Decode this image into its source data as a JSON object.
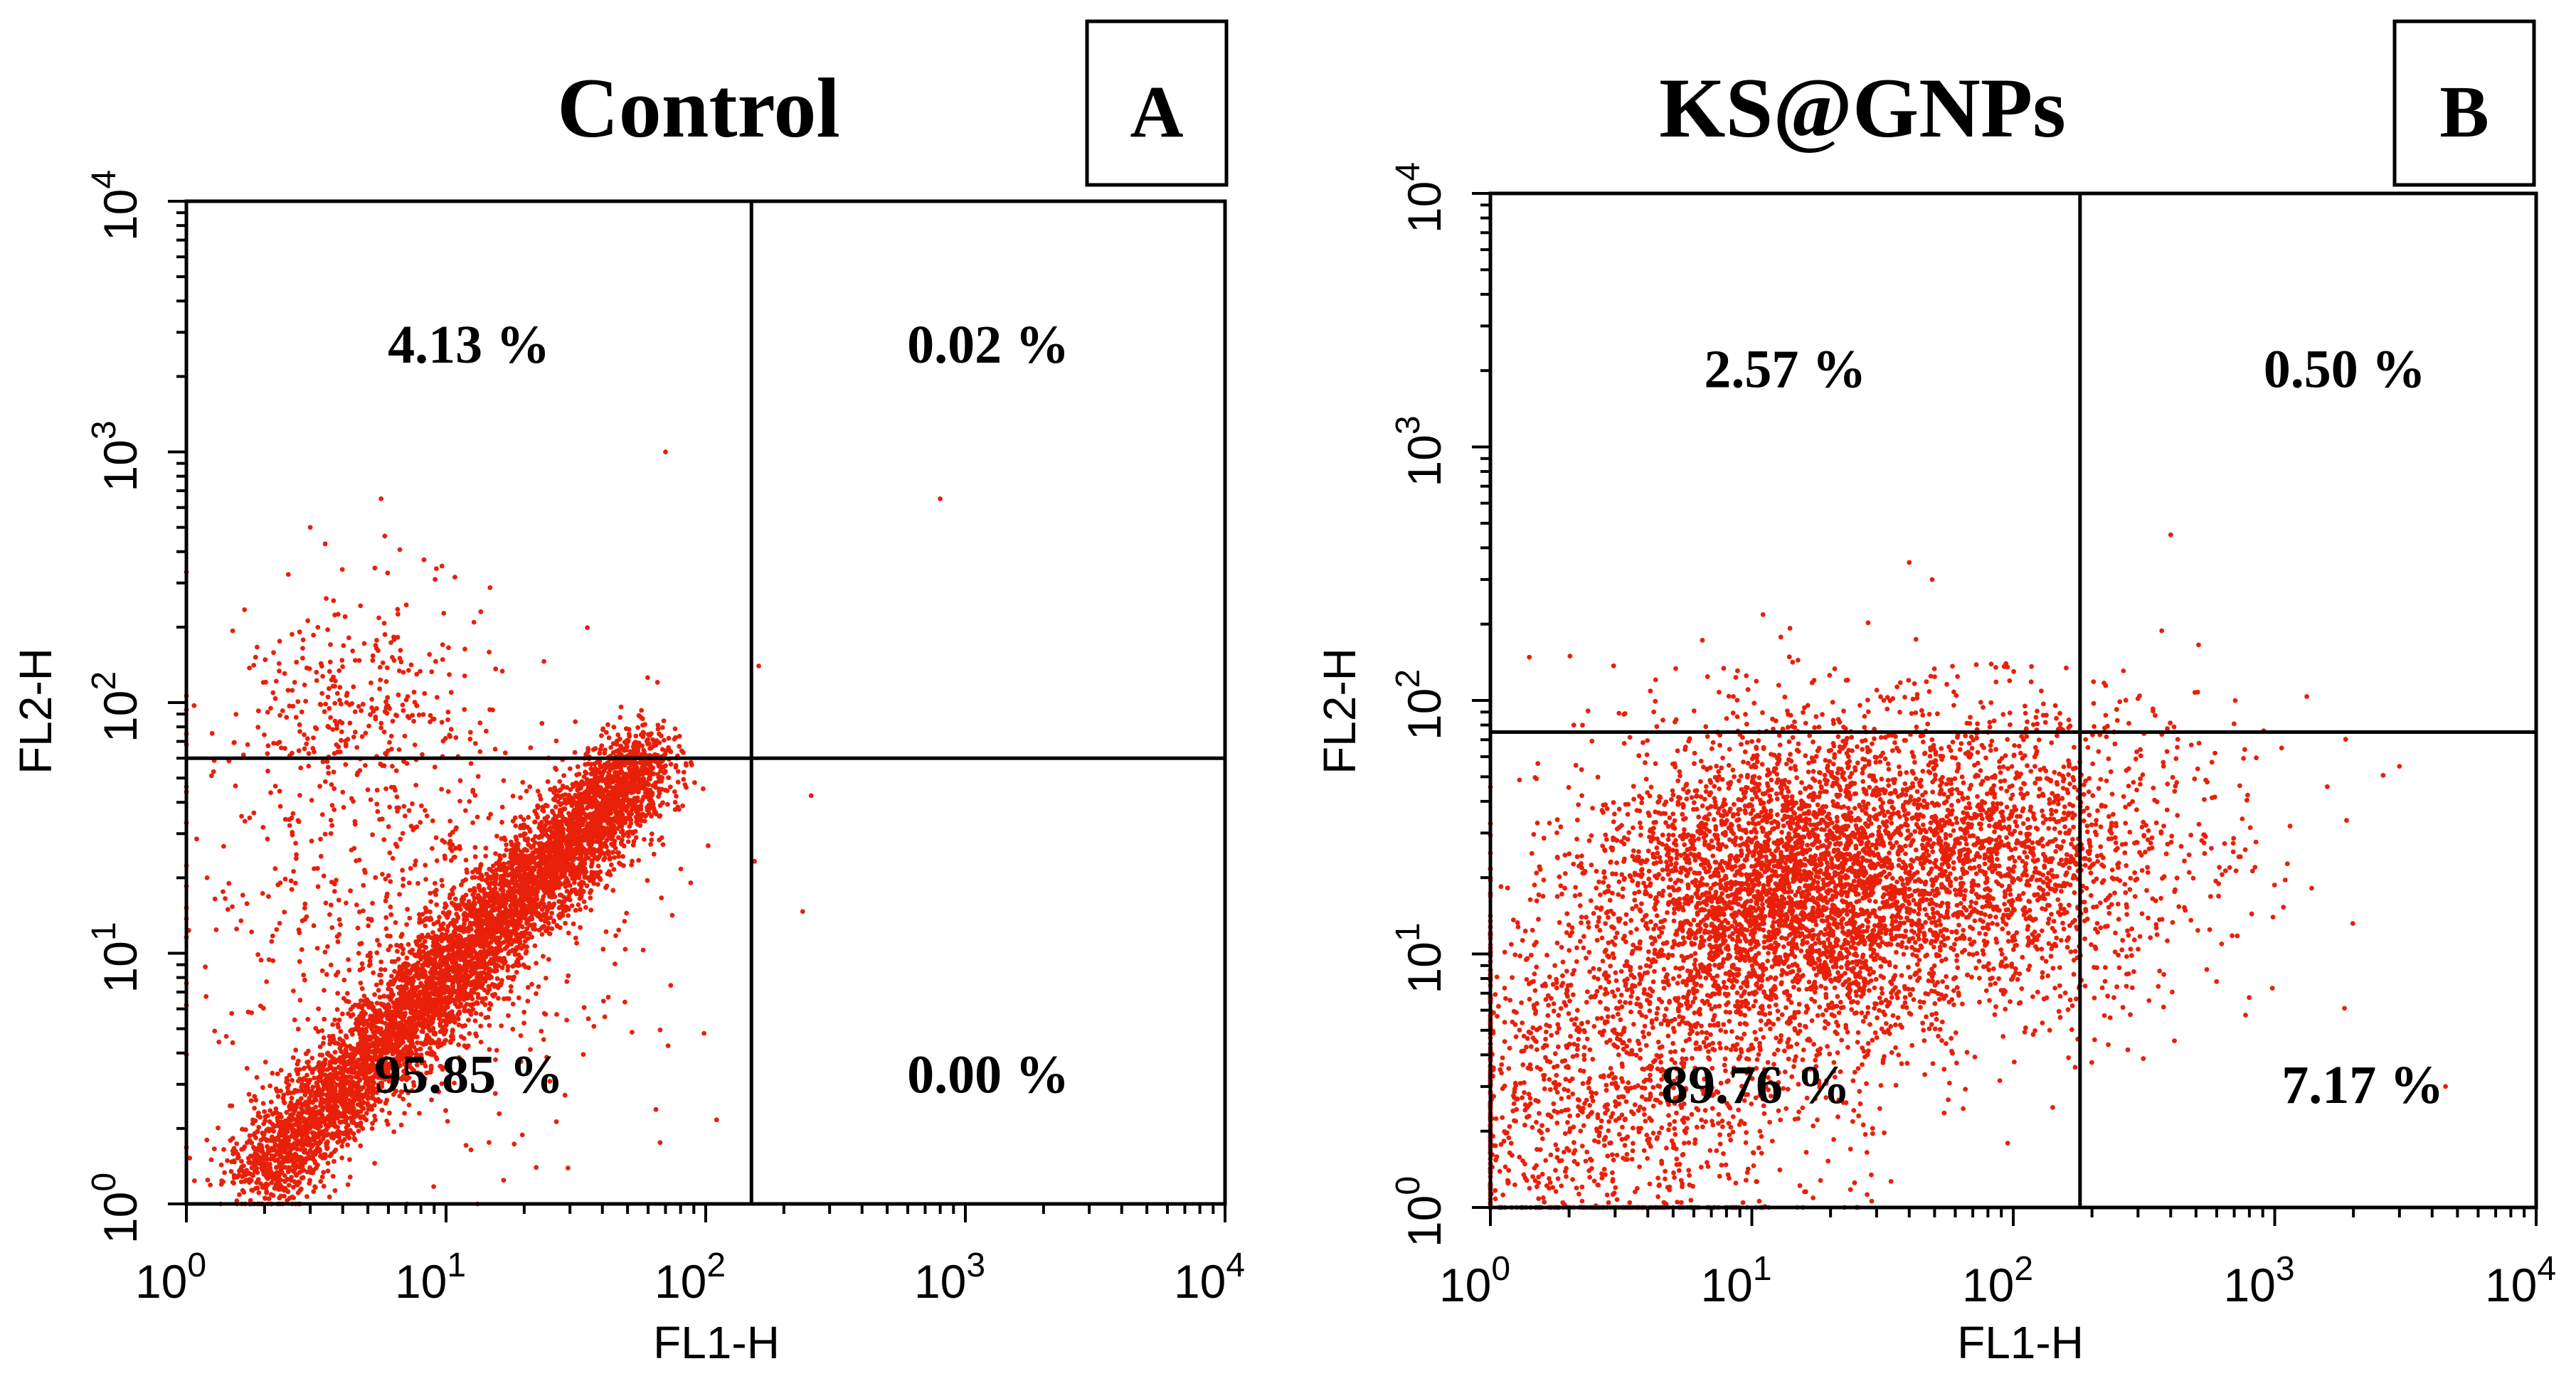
{
  "chart_data": [
    {
      "type": "scatter",
      "title": "Control",
      "panel_label": "A",
      "xlabel": "FL1-H",
      "ylabel": "FL2-H",
      "xscale": "log",
      "yscale": "log",
      "xlim": [
        1,
        10000
      ],
      "ylim": [
        1,
        10000
      ],
      "x_tick_base": "10",
      "x_tick_exponents": [
        "0",
        "1",
        "2",
        "3",
        "4"
      ],
      "y_tick_base": "10",
      "y_tick_exponents": [
        "0",
        "1",
        "2",
        "3",
        "4"
      ],
      "point_color": "#e8200a",
      "quadrant_gate": {
        "x": 150,
        "y": 60
      },
      "quadrants": [
        {
          "position": "upper-left",
          "label": "4.13 %",
          "value": 4.13
        },
        {
          "position": "upper-right",
          "label": "0.02 %",
          "value": 0.02
        },
        {
          "position": "lower-left",
          "label": "95.85 %",
          "value": 95.85
        },
        {
          "position": "lower-right",
          "label": "0.00 %",
          "value": 0.0
        }
      ],
      "populations": [
        {
          "shape": "diagonal-band",
          "from": [
            1.8,
            1.2
          ],
          "to": [
            60,
            60
          ],
          "spread_decades": 0.09,
          "fraction": 0.86
        },
        {
          "shape": "cluster",
          "center": [
            4.5,
            100
          ],
          "spread_decades": [
            0.25,
            0.22
          ],
          "fraction": 0.04
        },
        {
          "shape": "diffuse",
          "center": [
            8,
            15
          ],
          "spread_decades": [
            0.45,
            0.45
          ],
          "fraction": 0.1
        }
      ],
      "outliers": [
        [
          70,
          1000
        ],
        [
          800,
          650
        ],
        [
          3,
          500
        ],
        [
          160,
          140
        ]
      ]
    },
    {
      "type": "scatter",
      "title": "KS@GNPs",
      "panel_label": "B",
      "xlabel": "FL1-H",
      "ylabel": "FL2-H",
      "xscale": "log",
      "yscale": "log",
      "xlim": [
        1,
        10000
      ],
      "ylim": [
        1,
        10000
      ],
      "x_tick_base": "10",
      "x_tick_exponents": [
        "0",
        "1",
        "2",
        "3",
        "4"
      ],
      "y_tick_base": "10",
      "y_tick_exponents": [
        "0",
        "1",
        "2",
        "3",
        "4"
      ],
      "point_color": "#e8200a",
      "quadrant_gate": {
        "x": 180,
        "y": 75
      },
      "quadrants": [
        {
          "position": "upper-left",
          "label": "2.57 %",
          "value": 2.57
        },
        {
          "position": "upper-right",
          "label": "0.50 %",
          "value": 0.5
        },
        {
          "position": "lower-left",
          "label": "89.76 %",
          "value": 89.76
        },
        {
          "position": "lower-right",
          "label": "7.17 %",
          "value": 7.17
        }
      ],
      "populations": [
        {
          "shape": "cluster",
          "center": [
            14,
            18
          ],
          "spread_decades": [
            0.38,
            0.32
          ],
          "fraction": 0.55
        },
        {
          "shape": "cluster",
          "center": [
            90,
            25
          ],
          "spread_decades": [
            0.42,
            0.3
          ],
          "fraction": 0.25
        },
        {
          "shape": "cluster",
          "center": [
            3,
            3
          ],
          "spread_decades": [
            0.4,
            0.4
          ],
          "fraction": 0.2
        }
      ],
      "outliers": [
        [
          400,
          450
        ],
        [
          3000,
          55
        ],
        [
          4500,
          3
        ],
        [
          40,
          350
        ]
      ]
    }
  ]
}
